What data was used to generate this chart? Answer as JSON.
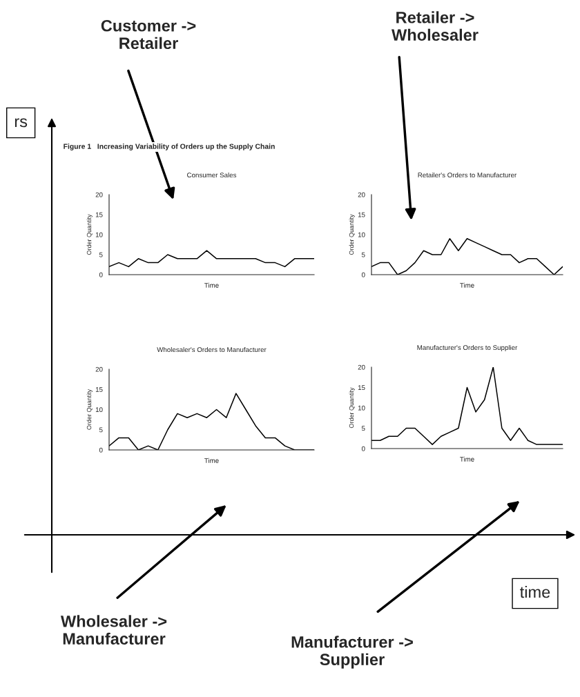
{
  "chart_data": [
    {
      "type": "other",
      "annotations": [
        "rs",
        "time",
        "Customer ->\nRetailer",
        "Retailer ->\nWholesaler",
        "Wholesaler ->\nManufacturer",
        "Manufacturer ->\nSupplier",
        "Figure 1   Increasing Variability of Orders up the Supply Chain"
      ]
    },
    {
      "type": "line",
      "title": "Consumer Sales",
      "xlabel": "Time",
      "ylabel": "Order Quantity",
      "categories": [
        null,
        null,
        null,
        null,
        null,
        null,
        null,
        null,
        null,
        null,
        null,
        null,
        null,
        null,
        null,
        null,
        null,
        null,
        null,
        null,
        null,
        null
      ],
      "values": [
        2,
        3,
        2,
        4,
        3,
        3,
        5,
        4,
        4,
        4,
        6,
        4,
        4,
        4,
        4,
        4,
        3,
        3,
        2,
        4,
        4,
        4
      ],
      "color": "#000000",
      "ylim": [
        0,
        20
      ],
      "yticks": [
        0,
        5,
        10,
        15,
        20
      ],
      "grid": false,
      "marker": "none",
      "line_style": "solid"
    },
    {
      "type": "line",
      "title": "Retailer's Orders to Manufacturer",
      "xlabel": "Time",
      "ylabel": "Order Quantity",
      "categories": [
        null,
        null,
        null,
        null,
        null,
        null,
        null,
        null,
        null,
        null,
        null,
        null,
        null,
        null,
        null,
        null,
        null,
        null,
        null,
        null,
        null,
        null,
        null
      ],
      "values": [
        2,
        3,
        3,
        0,
        1,
        3,
        6,
        5,
        5,
        9,
        6,
        9,
        8,
        7,
        6,
        5,
        5,
        3,
        4,
        4,
        2,
        0,
        2
      ],
      "color": "#000000",
      "ylim": [
        0,
        20
      ],
      "yticks": [
        0,
        5,
        10,
        15,
        20
      ],
      "grid": false,
      "marker": "none",
      "line_style": "solid"
    },
    {
      "type": "line",
      "title": "Wholesaler's Orders to Manufacturer",
      "xlabel": "Time",
      "ylabel": "Order Quantity",
      "categories": [
        null,
        null,
        null,
        null,
        null,
        null,
        null,
        null,
        null,
        null,
        null,
        null,
        null,
        null,
        null,
        null,
        null,
        null,
        null,
        null,
        null,
        null
      ],
      "values": [
        1,
        3,
        3,
        0,
        1,
        0,
        5,
        9,
        8,
        9,
        8,
        10,
        8,
        14,
        10,
        6,
        3,
        3,
        1,
        0,
        0,
        0
      ],
      "color": "#000000",
      "ylim": [
        0,
        20
      ],
      "yticks": [
        0,
        5,
        10,
        15,
        20
      ],
      "grid": false,
      "marker": "none",
      "line_style": "solid"
    },
    {
      "type": "line",
      "title": "Manufacturer's Orders to Supplier",
      "xlabel": "Time",
      "ylabel": "Order Quantity",
      "categories": [
        null,
        null,
        null,
        null,
        null,
        null,
        null,
        null,
        null,
        null,
        null,
        null,
        null,
        null,
        null,
        null,
        null,
        null,
        null,
        null,
        null,
        null,
        null
      ],
      "values": [
        2,
        2,
        3,
        3,
        5,
        5,
        3,
        1,
        3,
        4,
        5,
        15,
        9,
        12,
        20,
        5,
        2,
        5,
        2,
        1,
        1,
        1,
        1
      ],
      "color": "#000000",
      "ylim": [
        0,
        20
      ],
      "yticks": [
        0,
        5,
        10,
        15,
        20
      ],
      "grid": false,
      "marker": "none",
      "line_style": "solid"
    }
  ]
}
